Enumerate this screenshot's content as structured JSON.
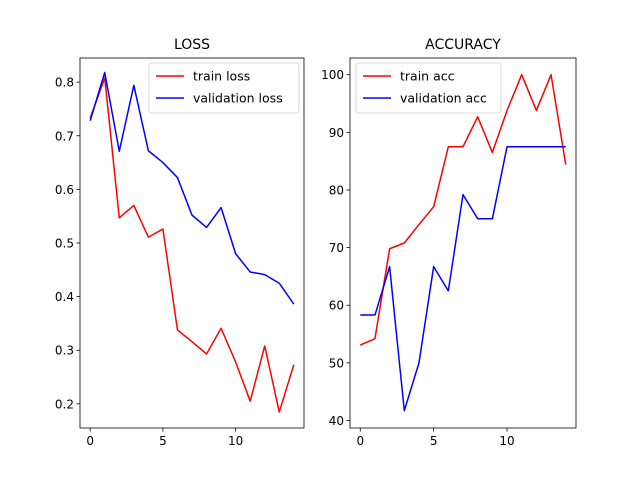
{
  "chart_data": [
    {
      "type": "line",
      "title": "LOSS",
      "xlabel": "",
      "ylabel": "",
      "x": [
        0,
        1,
        2,
        3,
        4,
        5,
        6,
        7,
        8,
        9,
        10,
        11,
        12,
        13,
        14
      ],
      "xlim": [
        -0.7,
        14.7
      ],
      "ylim": [
        0.155,
        0.845
      ],
      "xticks": [
        0,
        5,
        10
      ],
      "yticks": [
        0.2,
        0.3,
        0.4,
        0.5,
        0.6,
        0.7,
        0.8
      ],
      "ytick_labels": [
        "0.2",
        "0.3",
        "0.4",
        "0.5",
        "0.6",
        "0.7",
        "0.8"
      ],
      "legend_position": "top-right",
      "grid": false,
      "series": [
        {
          "name": "train loss",
          "color": "#ff0000",
          "values": [
            0.733,
            0.808,
            0.547,
            0.57,
            0.511,
            0.526,
            0.338,
            0.316,
            0.293,
            0.341,
            0.278,
            0.205,
            0.308,
            0.185,
            0.273
          ]
        },
        {
          "name": "validation loss",
          "color": "#0000ff",
          "values": [
            0.728,
            0.818,
            0.671,
            0.794,
            0.672,
            0.65,
            0.622,
            0.552,
            0.529,
            0.566,
            0.48,
            0.446,
            0.441,
            0.425,
            0.386
          ]
        }
      ]
    },
    {
      "type": "line",
      "title": "ACCURACY",
      "xlabel": "",
      "ylabel": "",
      "x": [
        0,
        1,
        2,
        3,
        4,
        5,
        6,
        7,
        8,
        9,
        10,
        11,
        12,
        13,
        14
      ],
      "xlim": [
        -0.7,
        14.7
      ],
      "ylim": [
        38.7,
        102.9
      ],
      "xticks": [
        0,
        5,
        10
      ],
      "yticks": [
        40,
        50,
        60,
        70,
        80,
        90,
        100
      ],
      "ytick_labels": [
        "40",
        "50",
        "60",
        "70",
        "80",
        "90",
        "100"
      ],
      "legend_position": "top-left",
      "grid": false,
      "series": [
        {
          "name": "train acc",
          "color": "#ff0000",
          "values": [
            53.1,
            54.2,
            69.8,
            70.8,
            74.0,
            77.1,
            87.5,
            87.5,
            92.7,
            86.5,
            93.8,
            100.0,
            93.8,
            100.0,
            84.4
          ]
        },
        {
          "name": "validation acc",
          "color": "#0000ff",
          "values": [
            58.3,
            58.3,
            66.7,
            41.7,
            50.0,
            66.7,
            62.5,
            79.2,
            75.0,
            75.0,
            87.5,
            87.5,
            87.5,
            87.5,
            87.5
          ]
        }
      ]
    }
  ]
}
